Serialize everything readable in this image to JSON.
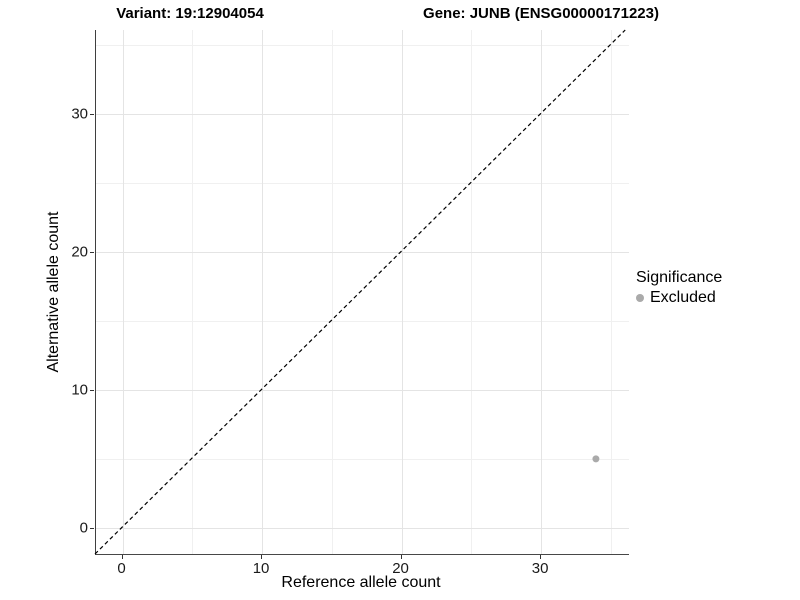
{
  "header": {
    "variant_title": "Variant: 19:12904054",
    "gene_title": "Gene: JUNB (ENSG00000171223)"
  },
  "chart_data": {
    "type": "scatter",
    "title": "Variant: 19:12904054 | Gene: JUNB (ENSG00000171223)",
    "xlabel": "Reference allele count",
    "ylabel": "Alternative allele count",
    "xlim": [
      -1.9,
      36.3
    ],
    "ylim": [
      -1.9,
      36.1
    ],
    "x_major_ticks": [
      0,
      10,
      20,
      30
    ],
    "y_major_ticks": [
      0,
      10,
      20,
      30
    ],
    "x_minor_gridlines": [
      5,
      15,
      25,
      35
    ],
    "y_minor_gridlines": [
      5,
      15,
      25,
      35
    ],
    "grid": "major+minor",
    "series": [
      {
        "name": "Excluded",
        "color": "#aaaaaa",
        "marker": "circle",
        "points": [
          {
            "x": 34,
            "y": 5
          }
        ]
      }
    ],
    "reference_line": {
      "type": "identity y=x",
      "style": "dashed",
      "color": "#000000",
      "span": [
        -1.9,
        36.1
      ]
    },
    "legend": {
      "title": "Significance",
      "position": "right",
      "items": [
        {
          "label": "Excluded",
          "color": "#aaaaaa"
        }
      ]
    }
  },
  "colors": {
    "background": "#ffffff",
    "axis_line": "#3f3f3f",
    "tick_mark": "#333333",
    "tick_text": "#1a1a1a",
    "grid_major": "#e4e4e4",
    "grid_minor": "#f0f0f0",
    "point": "#aaaaaa"
  }
}
